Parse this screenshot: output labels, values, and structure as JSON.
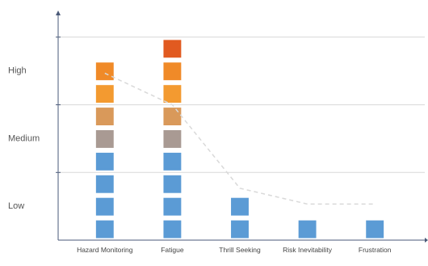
{
  "chart_data": {
    "type": "bar",
    "categories": [
      "Hazard Monitoring",
      "Fatigue",
      "Thrill Seeking",
      "Risk Inevitability",
      "Frustration"
    ],
    "values": [
      8,
      9,
      2,
      1,
      1
    ],
    "level_colors": [
      "#5b9bd5",
      "#5b9bd5",
      "#5b9bd5",
      "#5b9bd5",
      "#a99a93",
      "#d9995a",
      "#f39a30",
      "#f08a28",
      "#e15a20"
    ],
    "trend_values": [
      7.4,
      6.0,
      2.3,
      1.6,
      1.6
    ],
    "trend_color": "#d9d9d9",
    "ylim": [
      0,
      10
    ],
    "yticks": [
      {
        "value": 1.5,
        "label": "Low"
      },
      {
        "value": 4.5,
        "label": "Medium"
      },
      {
        "value": 7.5,
        "label": "High"
      }
    ],
    "ygrid": [
      3,
      6,
      9
    ],
    "grid": true
  }
}
